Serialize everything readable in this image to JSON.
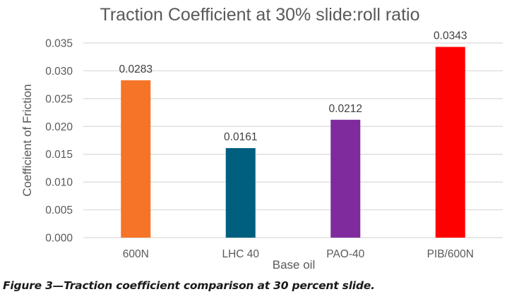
{
  "chart_data": {
    "type": "bar",
    "title": "Traction Coefficient at 30% slide:roll ratio",
    "xlabel": "Base oil",
    "ylabel": "Coefficient of Friction",
    "categories": [
      "600N",
      "LHC 40",
      "PAO-40",
      "PIB/600N"
    ],
    "values": [
      0.0283,
      0.0161,
      0.0212,
      0.0343
    ],
    "data_labels": [
      "0.0283",
      "0.0161",
      "0.0212",
      "0.0343"
    ],
    "colors": [
      "#f57428",
      "#005f7f",
      "#7f2b9e",
      "#ff0000"
    ],
    "ylim": [
      0,
      0.035
    ],
    "yticks": [
      0,
      0.005,
      0.01,
      0.015,
      0.02,
      0.025,
      0.03,
      0.035
    ],
    "ytick_labels": [
      "0.000",
      "0.005",
      "0.010",
      "0.015",
      "0.020",
      "0.025",
      "0.030",
      "0.035"
    ],
    "grid": true,
    "legend": "none"
  },
  "caption": "Figure 3—Traction coefficient comparison at 30 percent slide."
}
